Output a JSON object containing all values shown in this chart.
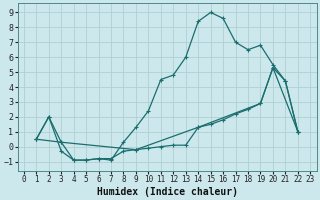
{
  "xlabel": "Humidex (Indice chaleur)",
  "bg_color": "#cce8ec",
  "grid_color": "#b0cfd4",
  "line_color": "#1a6e6e",
  "xlim": [
    -0.5,
    23.5
  ],
  "ylim": [
    -1.6,
    9.6
  ],
  "xticks": [
    0,
    1,
    2,
    3,
    4,
    5,
    6,
    7,
    8,
    9,
    10,
    11,
    12,
    13,
    14,
    15,
    16,
    17,
    18,
    19,
    20,
    21,
    22,
    23
  ],
  "yticks": [
    -1,
    0,
    1,
    2,
    3,
    4,
    5,
    6,
    7,
    8,
    9
  ],
  "curve1_x": [
    1,
    2,
    3,
    4,
    5,
    6,
    7,
    8,
    9,
    10,
    11,
    12,
    13,
    14,
    15,
    16,
    17,
    18,
    19,
    20,
    21,
    22
  ],
  "curve1_y": [
    0.5,
    2.0,
    -0.3,
    -0.9,
    -0.9,
    -0.8,
    -0.9,
    0.3,
    1.3,
    2.4,
    4.5,
    4.8,
    6.0,
    8.4,
    9.0,
    8.6,
    7.0,
    6.5,
    6.8,
    5.5,
    4.4,
    1.0
  ],
  "curve2_x": [
    1,
    2,
    3,
    4,
    5,
    6,
    7,
    8,
    9,
    10,
    11,
    12,
    13,
    14,
    15,
    16,
    17,
    18,
    19,
    20,
    21,
    22
  ],
  "curve2_y": [
    0.5,
    2.0,
    0.3,
    -0.9,
    -0.9,
    -0.8,
    -0.8,
    -0.3,
    -0.2,
    -0.1,
    0.0,
    0.1,
    0.1,
    1.3,
    1.5,
    1.8,
    2.2,
    2.5,
    2.9,
    5.3,
    4.4,
    1.0
  ],
  "curve3_x": [
    1,
    3,
    9,
    14,
    19,
    20,
    22
  ],
  "curve3_y": [
    0.5,
    0.3,
    -0.2,
    1.3,
    2.9,
    5.3,
    1.0
  ]
}
